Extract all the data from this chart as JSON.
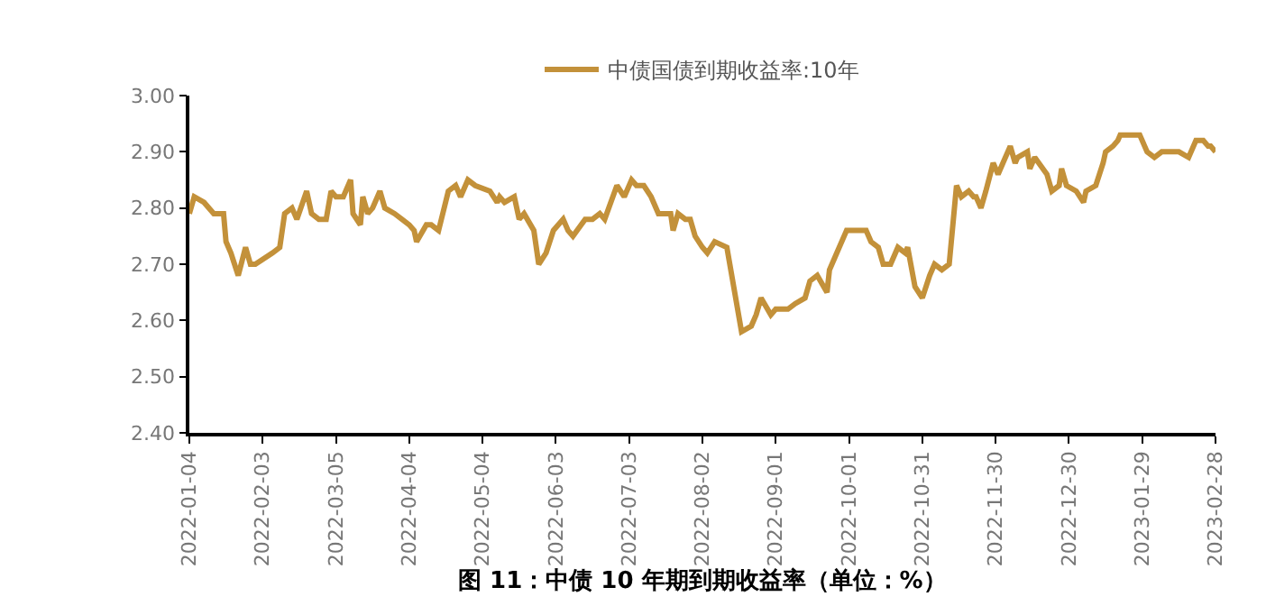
{
  "chart_data": {
    "type": "line",
    "title": "图 11：中债 10 年期到期收益率（单位：%）",
    "legend": "top",
    "marker": "none",
    "line_style": "solid",
    "xlim": [
      "2022-01-04",
      "2023-02-28"
    ],
    "xticks": [
      "2022-01-04",
      "2022-02-03",
      "2022-03-05",
      "2022-04-04",
      "2022-05-04",
      "2022-06-03",
      "2022-07-03",
      "2022-08-02",
      "2022-09-01",
      "2022-10-01",
      "2022-10-31",
      "2022-11-30",
      "2022-12-30",
      "2023-01-29",
      "2023-02-28"
    ],
    "ylim": [
      2.4,
      3.0
    ],
    "yticks": [
      {
        "value": 2.4,
        "label": "2.40"
      },
      {
        "value": 2.5,
        "label": "2.50"
      },
      {
        "value": 2.6,
        "label": "2.60"
      },
      {
        "value": 2.7,
        "label": "2.70"
      },
      {
        "value": 2.8,
        "label": "2.80"
      },
      {
        "value": 2.9,
        "label": "2.90"
      },
      {
        "value": 3.0,
        "label": "3.00"
      }
    ],
    "x": [
      "2022-01-04",
      "2022-01-06",
      "2022-01-10",
      "2022-01-14",
      "2022-01-16",
      "2022-01-18",
      "2022-01-19",
      "2022-01-21",
      "2022-01-24",
      "2022-01-27",
      "2022-01-29",
      "2022-01-31",
      "2022-02-07",
      "2022-02-10",
      "2022-02-12",
      "2022-02-15",
      "2022-02-17",
      "2022-02-21",
      "2022-02-23",
      "2022-02-26",
      "2022-03-01",
      "2022-03-03",
      "2022-03-05",
      "2022-03-08",
      "2022-03-11",
      "2022-03-12",
      "2022-03-15",
      "2022-03-16",
      "2022-03-18",
      "2022-03-20",
      "2022-03-23",
      "2022-03-25",
      "2022-03-29",
      "2022-04-01",
      "2022-04-04",
      "2022-04-06",
      "2022-04-07",
      "2022-04-11",
      "2022-04-13",
      "2022-04-16",
      "2022-04-20",
      "2022-04-23",
      "2022-04-25",
      "2022-04-28",
      "2022-05-01",
      "2022-05-07",
      "2022-05-10",
      "2022-05-11",
      "2022-05-13",
      "2022-05-17",
      "2022-05-19",
      "2022-05-21",
      "2022-05-25",
      "2022-05-27",
      "2022-05-30",
      "2022-06-02",
      "2022-06-06",
      "2022-06-08",
      "2022-06-10",
      "2022-06-15",
      "2022-06-18",
      "2022-06-21",
      "2022-06-23",
      "2022-06-28",
      "2022-07-01",
      "2022-07-04",
      "2022-07-06",
      "2022-07-09",
      "2022-07-12",
      "2022-07-15",
      "2022-07-20",
      "2022-07-21",
      "2022-07-23",
      "2022-07-26",
      "2022-07-28",
      "2022-07-30",
      "2022-08-02",
      "2022-08-04",
      "2022-08-07",
      "2022-08-12",
      "2022-08-18",
      "2022-08-22",
      "2022-08-24",
      "2022-08-26",
      "2022-08-30",
      "2022-09-01",
      "2022-09-03",
      "2022-09-06",
      "2022-09-09",
      "2022-09-13",
      "2022-09-15",
      "2022-09-18",
      "2022-09-22",
      "2022-09-23",
      "2022-09-26",
      "2022-09-30",
      "2022-10-08",
      "2022-10-10",
      "2022-10-13",
      "2022-10-15",
      "2022-10-18",
      "2022-10-21",
      "2022-10-24",
      "2022-10-25",
      "2022-10-28",
      "2022-10-31",
      "2022-11-03",
      "2022-11-05",
      "2022-11-08",
      "2022-11-11",
      "2022-11-14",
      "2022-11-16",
      "2022-11-19",
      "2022-11-21",
      "2022-11-22",
      "2022-11-24",
      "2022-11-26",
      "2022-11-29",
      "2022-12-01",
      "2022-12-03",
      "2022-12-06",
      "2022-12-08",
      "2022-12-09",
      "2022-12-13",
      "2022-12-14",
      "2022-12-16",
      "2022-12-21",
      "2022-12-23",
      "2022-12-26",
      "2022-12-27",
      "2022-12-29",
      "2023-01-02",
      "2023-01-05",
      "2023-01-06",
      "2023-01-10",
      "2023-01-13",
      "2023-01-14",
      "2023-01-17",
      "2023-01-19",
      "2023-01-20",
      "2023-01-28",
      "2023-01-31",
      "2023-02-03",
      "2023-02-06",
      "2023-02-10",
      "2023-02-13",
      "2023-02-17",
      "2023-02-20",
      "2023-02-23",
      "2023-02-25",
      "2023-02-26",
      "2023-02-28"
    ],
    "series": [
      {
        "name": "中债国债到期收益率:10年",
        "color": "#c3913a",
        "values": [
          2.79,
          2.82,
          2.81,
          2.79,
          2.79,
          2.79,
          2.74,
          2.72,
          2.68,
          2.73,
          2.7,
          2.7,
          2.72,
          2.73,
          2.79,
          2.8,
          2.78,
          2.83,
          2.79,
          2.78,
          2.78,
          2.83,
          2.82,
          2.82,
          2.85,
          2.79,
          2.77,
          2.82,
          2.79,
          2.8,
          2.83,
          2.8,
          2.79,
          2.78,
          2.77,
          2.76,
          2.74,
          2.77,
          2.77,
          2.76,
          2.83,
          2.84,
          2.82,
          2.85,
          2.84,
          2.83,
          2.81,
          2.82,
          2.81,
          2.82,
          2.78,
          2.79,
          2.76,
          2.7,
          2.72,
          2.76,
          2.78,
          2.76,
          2.75,
          2.78,
          2.78,
          2.79,
          2.78,
          2.84,
          2.82,
          2.85,
          2.84,
          2.84,
          2.82,
          2.79,
          2.79,
          2.76,
          2.79,
          2.78,
          2.78,
          2.75,
          2.73,
          2.72,
          2.74,
          2.73,
          2.58,
          2.59,
          2.61,
          2.64,
          2.61,
          2.62,
          2.62,
          2.62,
          2.63,
          2.64,
          2.67,
          2.68,
          2.65,
          2.69,
          2.72,
          2.76,
          2.76,
          2.74,
          2.73,
          2.7,
          2.7,
          2.73,
          2.72,
          2.73,
          2.66,
          2.64,
          2.68,
          2.7,
          2.69,
          2.7,
          2.84,
          2.82,
          2.83,
          2.82,
          2.82,
          2.8,
          2.83,
          2.88,
          2.86,
          2.88,
          2.91,
          2.88,
          2.89,
          2.9,
          2.87,
          2.89,
          2.86,
          2.83,
          2.84,
          2.87,
          2.84,
          2.83,
          2.81,
          2.83,
          2.84,
          2.88,
          2.9,
          2.91,
          2.92,
          2.93,
          2.93,
          2.9,
          2.89,
          2.9,
          2.9,
          2.9,
          2.89,
          2.92,
          2.92,
          2.91,
          2.91,
          2.9
        ]
      }
    ]
  }
}
